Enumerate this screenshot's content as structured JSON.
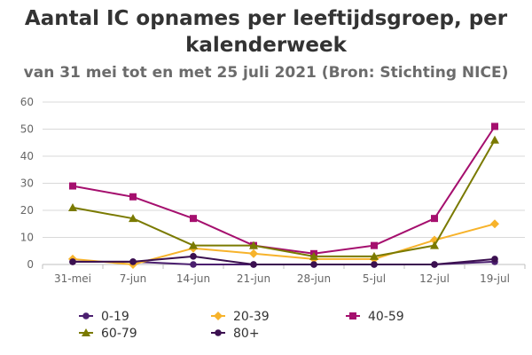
{
  "header": {
    "title": "Aantal IC opnames per leeftijdsgroep, per kalenderweek",
    "subtitle": "van 31 mei tot en met 25 juli 2021 (Bron: Stichting NICE)"
  },
  "chart_data": {
    "type": "line",
    "title": "Aantal IC opnames per leeftijdsgroep, per kalenderweek",
    "subtitle": "van 31 mei tot en met 25 juli 2021 (Bron: Stichting NICE)",
    "xlabel": "",
    "ylabel": "",
    "categories": [
      "31-mei",
      "7-jun",
      "14-jun",
      "21-jun",
      "28-jun",
      "5-jul",
      "12-jul",
      "19-jul"
    ],
    "ylim": [
      0,
      60
    ],
    "yticks": [
      0,
      10,
      20,
      30,
      40,
      50,
      60
    ],
    "grid": true,
    "legend_position": "bottom",
    "series": [
      {
        "name": "0-19",
        "color": "#4b1f6f",
        "marker": "circle",
        "values": [
          1,
          1,
          0,
          0,
          0,
          0,
          0,
          1
        ]
      },
      {
        "name": "20-39",
        "color": "#f7b32b",
        "marker": "diamond",
        "values": [
          2,
          0,
          6,
          4,
          2,
          2,
          9,
          15
        ]
      },
      {
        "name": "40-59",
        "color": "#a50f6e",
        "marker": "square",
        "values": [
          29,
          25,
          17,
          7,
          4,
          7,
          17,
          51
        ]
      },
      {
        "name": "60-79",
        "color": "#7a7a00",
        "marker": "triangle",
        "values": [
          21,
          17,
          7,
          7,
          3,
          3,
          7,
          46
        ]
      },
      {
        "name": "80+",
        "color": "#3b1050",
        "marker": "circle",
        "values": [
          1,
          1,
          3,
          0,
          0,
          0,
          0,
          2
        ]
      }
    ]
  }
}
